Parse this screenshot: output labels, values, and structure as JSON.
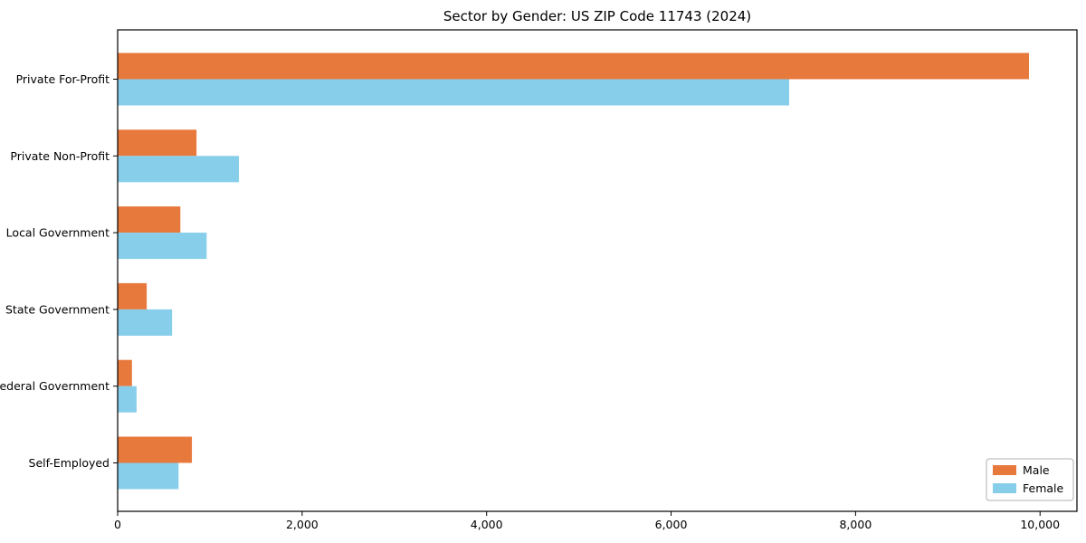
{
  "chart_data": {
    "type": "bar",
    "orientation": "horizontal",
    "title": "Sector by Gender: US ZIP Code 11743 (2024)",
    "xlabel": "",
    "ylabel": "",
    "categories": [
      "Private For-Profit",
      "Private Non-Profit",
      "Local Government",
      "State Government",
      "Federal Government",
      "Self-Employed"
    ],
    "series": [
      {
        "name": "Male",
        "color": "#e8793d",
        "values": [
          9880,
          855,
          680,
          315,
          155,
          805
        ]
      },
      {
        "name": "Female",
        "color": "#87ceeb",
        "values": [
          7280,
          1315,
          965,
          590,
          205,
          660
        ]
      }
    ],
    "xlim": [
      0,
      10400
    ],
    "xticks": [
      0,
      2000,
      4000,
      6000,
      8000,
      10000
    ],
    "xtick_labels": [
      "0",
      "2,000",
      "4,000",
      "6,000",
      "8,000",
      "10,000"
    ],
    "legend_position": "lower right",
    "grid": false,
    "colors": {
      "male": "#e8793d",
      "female": "#87ceeb",
      "axis": "#000000",
      "legend_border": "#b0b0b0",
      "background": "#ffffff"
    }
  }
}
